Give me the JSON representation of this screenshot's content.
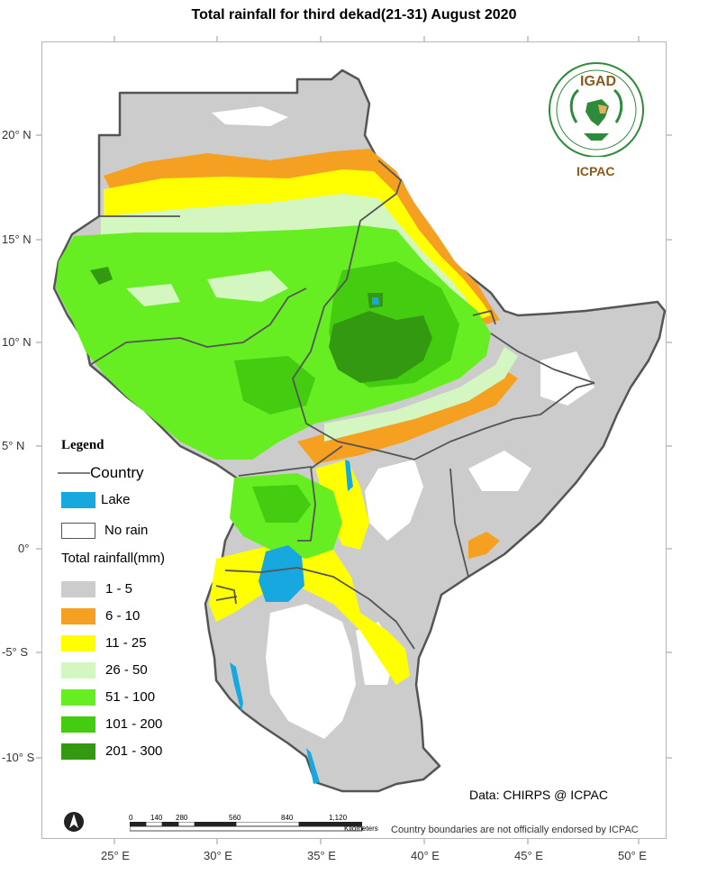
{
  "title": "Total rainfall for third  dekad(21-31) August 2020",
  "axes": {
    "lat_labels": [
      "20° N",
      "15° N",
      "10° N",
      "5° N",
      "0°",
      "-5° S",
      "-10° S"
    ],
    "lon_labels": [
      "25° E",
      "30° E",
      "35° E",
      "40° E",
      "45° E",
      "50° E"
    ]
  },
  "legend": {
    "title": "Legend",
    "country_label": "Country",
    "lake_label": "Lake",
    "norain_label": "No rain",
    "rain_title": "Total rainfall(mm)",
    "classes": [
      {
        "label": "1 - 5",
        "color": "#cccccc"
      },
      {
        "label": "6 - 10",
        "color": "#f5a020"
      },
      {
        "label": "11 - 25",
        "color": "#ffff00"
      },
      {
        "label": "26 - 50",
        "color": "#d4f7c2"
      },
      {
        "label": "51 - 100",
        "color": "#66ee22"
      },
      {
        "label": "101 - 200",
        "color": "#44cc11"
      },
      {
        "label": "201 - 300",
        "color": "#339911"
      }
    ],
    "lake_color": "#18a8e0"
  },
  "logo": {
    "name": "IGAD",
    "sub": "ICPAC"
  },
  "scale": {
    "ticks": [
      "0",
      "140",
      "280",
      "560",
      "840",
      "1,120"
    ],
    "unit": "Kilometers"
  },
  "notes": {
    "data": "Data: CHIRPS @ ICPAC",
    "boundaries": "Country boundaries are not officially endorsed by ICPAC"
  }
}
